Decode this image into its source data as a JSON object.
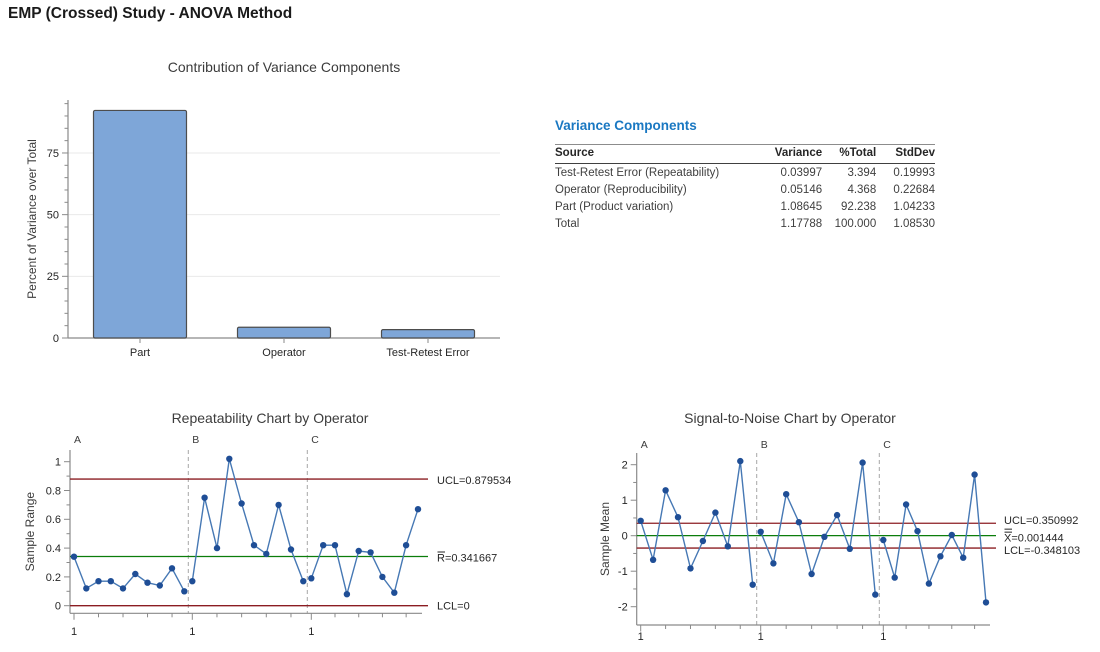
{
  "page_title": "EMP (Crossed) Study - ANOVA Method",
  "colors": {
    "heading_blue": "#1A78C2",
    "bar_fill": "#7EA6D8",
    "bar_stroke": "#4D4D4D",
    "data_line": "#4678B4",
    "data_point": "#1F4E96",
    "limit_line": "#8B1D22",
    "center_line": "#0B7D0B",
    "divider": "#A6A6A6",
    "axis": "#8A8A8A",
    "grid": "#E9E9E9",
    "title_text": "#3C3C3C",
    "tick_text": "#262626"
  },
  "variance_table": {
    "title": "Variance Components",
    "columns": [
      "Source",
      "Variance",
      "%Total",
      "StdDev"
    ],
    "rows": [
      {
        "source": "Test-Retest Error (Repeatability)",
        "variance": "0.03997",
        "pct_total": "3.394",
        "stddev": "0.19993"
      },
      {
        "source": "Operator (Reproducibility)",
        "variance": "0.05146",
        "pct_total": "4.368",
        "stddev": "0.22684"
      },
      {
        "source": "Part (Product variation)",
        "variance": "1.08645",
        "pct_total": "92.238",
        "stddev": "1.04233"
      },
      {
        "source": "Total",
        "variance": "1.17788",
        "pct_total": "100.000",
        "stddev": "1.08530"
      }
    ]
  },
  "chart_data": [
    {
      "type": "bar",
      "title": "Contribution of Variance Components",
      "ylabel": "Percent of Variance over Total",
      "categories": [
        "Part",
        "Operator",
        "Test-Retest Error"
      ],
      "values": [
        92.238,
        4.368,
        3.394
      ],
      "yticks": [
        0,
        25,
        50,
        75
      ],
      "minor_tick_step": 5,
      "ylim": [
        0,
        96.5
      ],
      "grid": true
    },
    {
      "type": "control-chart",
      "title": "Repeatability Chart by Operator",
      "ylabel": "Sample Range",
      "xtick_label": "1",
      "panel_labels": [
        "A",
        "B",
        "C"
      ],
      "series": [
        {
          "name": "A",
          "values": [
            0.34,
            0.12,
            0.17,
            0.17,
            0.12,
            0.22,
            0.16,
            0.14,
            0.26,
            0.1
          ]
        },
        {
          "name": "B",
          "values": [
            0.17,
            0.75,
            0.4,
            1.02,
            0.71,
            0.42,
            0.36,
            0.7,
            0.39,
            0.17
          ]
        },
        {
          "name": "C",
          "values": [
            0.19,
            0.42,
            0.42,
            0.08,
            0.38,
            0.37,
            0.2,
            0.09,
            0.42,
            0.67
          ]
        }
      ],
      "yticks": [
        0,
        0.2,
        0.4,
        0.6,
        0.8,
        1
      ],
      "ytick_labels": [
        "0",
        "0.2",
        "0.4",
        "0.6",
        "0.8",
        "1"
      ],
      "ylim": [
        -0.06,
        1.1
      ],
      "control_lines": [
        {
          "id": "ucl",
          "label": "UCL=0.879534",
          "value": 0.879534,
          "style": "limit",
          "overbar": 0
        },
        {
          "id": "center",
          "label": "R=0.341667",
          "value": 0.341667,
          "style": "center",
          "overbar": 1
        },
        {
          "id": "lcl",
          "label": "LCL=0",
          "value": 0,
          "style": "limit",
          "overbar": 0
        }
      ]
    },
    {
      "type": "control-chart",
      "title": "Signal-to-Noise Chart by Operator",
      "ylabel": "Sample Mean",
      "xtick_label": "1",
      "panel_labels": [
        "A",
        "B",
        "C"
      ],
      "series": [
        {
          "name": "A",
          "values": [
            0.42,
            -0.68,
            1.28,
            0.52,
            -0.92,
            -0.15,
            0.65,
            -0.3,
            2.1,
            -1.38
          ]
        },
        {
          "name": "B",
          "values": [
            0.11,
            -0.78,
            1.17,
            0.38,
            -1.08,
            -0.03,
            0.58,
            -0.37,
            2.06,
            -1.66
          ]
        },
        {
          "name": "C",
          "values": [
            -0.12,
            -1.18,
            0.88,
            0.13,
            -1.35,
            -0.58,
            0.02,
            -0.62,
            1.72,
            -1.88
          ]
        }
      ],
      "yticks": [
        -2,
        -1,
        0,
        1,
        2
      ],
      "ytick_labels": [
        "-2",
        "-1",
        "0",
        "1",
        "2"
      ],
      "ylim": [
        -2.55,
        2.35
      ],
      "control_lines": [
        {
          "id": "ucl",
          "label": "UCL=0.350992",
          "value": 0.350992,
          "style": "limit",
          "overbar": 0
        },
        {
          "id": "center",
          "label": "X=0.001444",
          "value": 0.001444,
          "style": "center",
          "overbar": 2
        },
        {
          "id": "lcl",
          "label": "LCL=-0.348103",
          "value": -0.348103,
          "style": "limit",
          "overbar": 0
        }
      ]
    }
  ]
}
